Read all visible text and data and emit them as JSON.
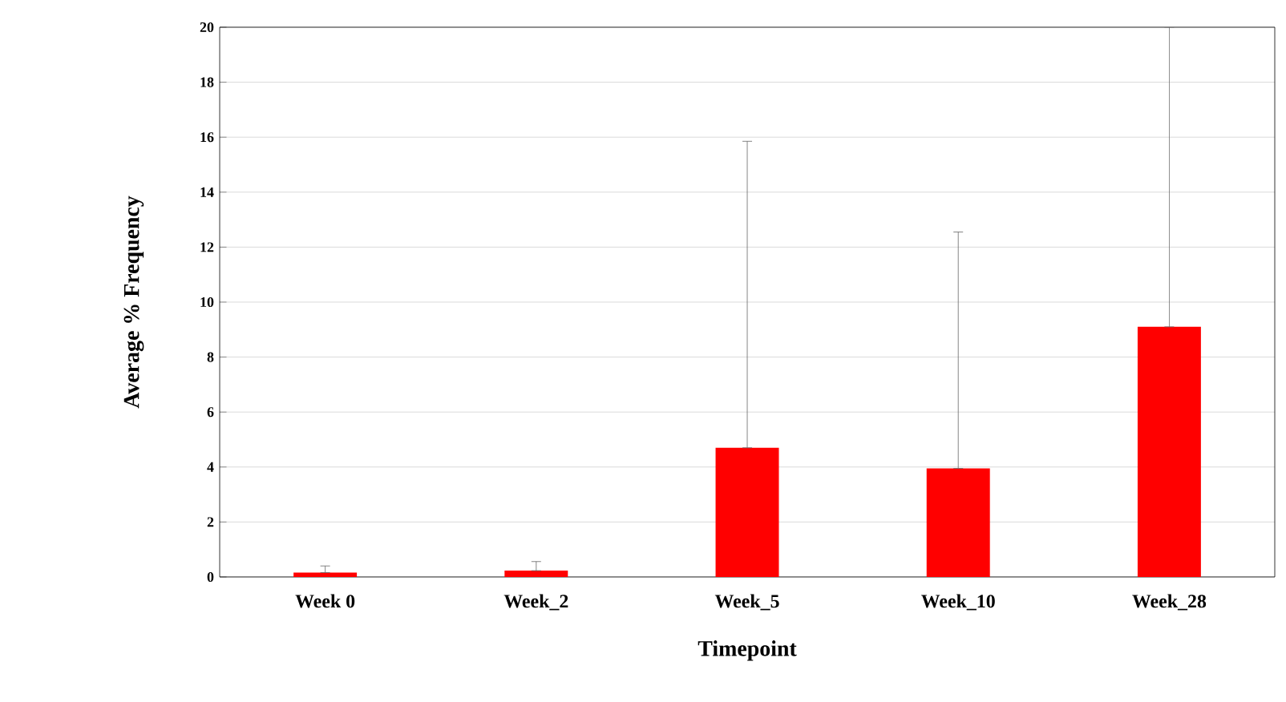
{
  "chart_data": {
    "type": "bar",
    "xlabel": "Timepoint",
    "ylabel": "Average % Frequency",
    "categories": [
      "Week 0",
      "Week_2",
      "Week_5",
      "Week_10",
      "Week_28"
    ],
    "values": [
      0.16,
      0.23,
      4.7,
      3.95,
      9.1
    ],
    "errors": [
      [
        0.16,
        0.4
      ],
      [
        0.23,
        0.56
      ],
      [
        4.7,
        15.85
      ],
      [
        3.95,
        12.55
      ],
      [
        9.1,
        20
      ]
    ],
    "color": "#ff0000",
    "ylim": [
      0,
      20
    ],
    "yticks": [
      0,
      2,
      4,
      6,
      8,
      10,
      12,
      14,
      16,
      18,
      20
    ],
    "grid": "y"
  }
}
